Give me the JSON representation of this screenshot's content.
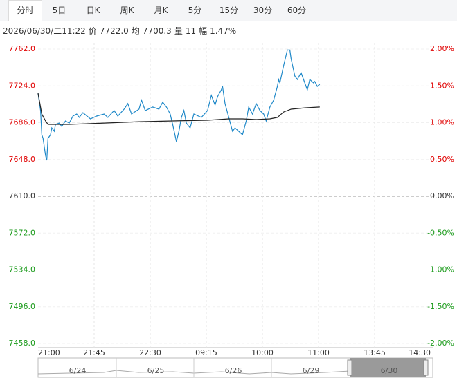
{
  "tabs": {
    "items": [
      "分时",
      "5日",
      "日K",
      "周K",
      "月K",
      "5分",
      "15分",
      "30分",
      "60分"
    ],
    "active": 0
  },
  "info": {
    "time": "2026/06/30/二11:22",
    "fields": [
      {
        "label": "价",
        "value": "7722.0"
      },
      {
        "label": "均",
        "value": "7700.3"
      },
      {
        "label": "量",
        "value": "11"
      },
      {
        "label": "幅",
        "value": "1.47%"
      }
    ]
  },
  "chart_data": {
    "type": "line",
    "xlim": [
      0,
      315
    ],
    "xticks": [
      {
        "value": 0,
        "label": "21:00"
      },
      {
        "value": 45,
        "label": "21:45"
      },
      {
        "value": 90,
        "label": "22:30"
      },
      {
        "value": 135,
        "label": "09:15"
      },
      {
        "value": 180,
        "label": "10:00"
      },
      {
        "value": 225,
        "label": "11:00"
      },
      {
        "value": 270,
        "label": "13:45"
      },
      {
        "value": 315,
        "label": "14:30"
      }
    ],
    "ylim": [
      7458,
      7762
    ],
    "yticks": [
      {
        "value": 7762,
        "label": "7762.0"
      },
      {
        "value": 7724,
        "label": "7724.0"
      },
      {
        "value": 7686,
        "label": "7686.0"
      },
      {
        "value": 7648,
        "label": "7648.0"
      },
      {
        "value": 7610,
        "label": "7610.0"
      },
      {
        "value": 7572,
        "label": "7572.0"
      },
      {
        "value": 7534,
        "label": "7534.0"
      },
      {
        "value": 7496,
        "label": "7496.0"
      },
      {
        "value": 7458,
        "label": "7458.0"
      }
    ],
    "y2lim": [
      -2,
      2
    ],
    "y2ticks": [
      {
        "value": 2,
        "label": "2.00%"
      },
      {
        "value": 1.5,
        "label": "1.50%"
      },
      {
        "value": 1,
        "label": "1.00%"
      },
      {
        "value": 0.5,
        "label": "0.50%"
      },
      {
        "value": 0,
        "label": "0.00%"
      },
      {
        "value": -0.5,
        "label": "-0.50%"
      },
      {
        "value": -1,
        "label": "-1.00%"
      },
      {
        "value": -1.5,
        "label": "-1.50%"
      },
      {
        "value": -2,
        "label": "-2.00%"
      }
    ],
    "up_color": "#e00000",
    "down_color": "#1a9a1a",
    "flat_color": "#333333",
    "series": [
      {
        "color": "#1e88c8",
        "x": [
          0,
          2,
          3,
          4,
          6,
          7,
          8,
          10,
          11,
          13,
          14,
          17,
          19,
          22,
          25,
          28,
          31,
          33,
          36,
          42,
          47,
          53,
          56,
          61,
          64,
          69,
          72,
          75,
          81,
          83,
          86,
          92,
          97,
          100,
          103,
          106,
          108,
          111,
          113,
          115,
          117,
          119,
          122,
          125,
          131,
          136,
          139,
          142,
          144,
          147,
          148,
          150,
          153,
          156,
          158,
          161,
          164,
          167,
          169,
          172,
          175,
          178,
          181,
          183,
          186,
          189,
          192,
          193,
          194,
          197,
          200,
          202,
          203,
          206,
          208,
          211,
          214,
          216,
          218,
          221,
          222,
          224,
          226
        ],
        "values": [
          7716.3,
          7698.5,
          7673.5,
          7669.9,
          7652.1,
          7647.1,
          7669.9,
          7673.5,
          7680.6,
          7677.1,
          7684.2,
          7685.6,
          7682.1,
          7687.8,
          7685.6,
          7692.8,
          7694.9,
          7691.4,
          7696.3,
          7689.9,
          7692.8,
          7694.9,
          7691.4,
          7698.5,
          7692.8,
          7699.9,
          7705.6,
          7694.9,
          7699.9,
          7709.2,
          7698.5,
          7702.1,
          7699.9,
          7707.1,
          7702.1,
          7694.9,
          7684.2,
          7666.4,
          7677.1,
          7691.4,
          7698.5,
          7685.6,
          7680.6,
          7694.9,
          7691.4,
          7698.5,
          7714.2,
          7704.2,
          7712.8,
          7719.9,
          7723.5,
          7705.6,
          7691.4,
          7677.1,
          7680.6,
          7677.1,
          7673.5,
          7687.8,
          7702.1,
          7694.9,
          7705.6,
          7698.5,
          7694.9,
          7687.8,
          7702.1,
          7709.2,
          7723.5,
          7730.6,
          7727,
          7744.9,
          7761,
          7761,
          7752,
          7734.2,
          7730.6,
          7737.7,
          7727,
          7719.9,
          7730.6,
          7727,
          7728.5,
          7723.5,
          7725.6
        ]
      },
      {
        "color": "#222222",
        "x": [
          0,
          3,
          6,
          8,
          25,
          53,
          81,
          108,
          136,
          153,
          164,
          175,
          186,
          192,
          197,
          203,
          214,
          226
        ],
        "values": [
          7716.3,
          7694.9,
          7687.8,
          7684.2,
          7684.2,
          7685.6,
          7687,
          7687.8,
          7688.5,
          7689.9,
          7689.9,
          7689.2,
          7689.9,
          7691.4,
          7697,
          7699.9,
          7701.3,
          7702.1
        ]
      }
    ]
  },
  "navigator": {
    "dates": [
      "6/24",
      "6/25",
      "6/26",
      "6/29",
      "6/30"
    ]
  }
}
